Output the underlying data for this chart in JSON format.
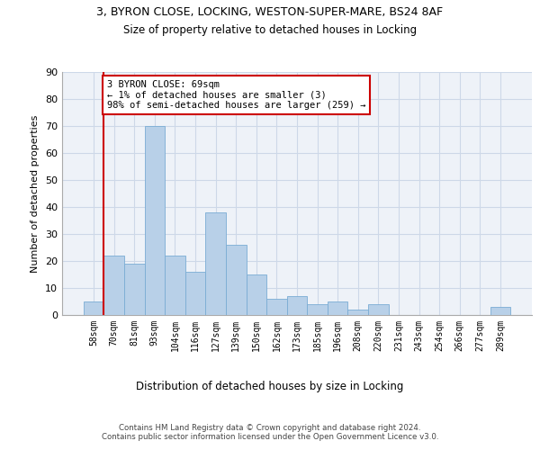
{
  "title1": "3, BYRON CLOSE, LOCKING, WESTON-SUPER-MARE, BS24 8AF",
  "title2": "Size of property relative to detached houses in Locking",
  "xlabel": "Distribution of detached houses by size in Locking",
  "ylabel": "Number of detached properties",
  "bin_labels": [
    "58sqm",
    "70sqm",
    "81sqm",
    "93sqm",
    "104sqm",
    "116sqm",
    "127sqm",
    "139sqm",
    "150sqm",
    "162sqm",
    "173sqm",
    "185sqm",
    "196sqm",
    "208sqm",
    "220sqm",
    "231sqm",
    "243sqm",
    "254sqm",
    "266sqm",
    "277sqm",
    "289sqm"
  ],
  "bar_heights": [
    5,
    22,
    19,
    70,
    22,
    16,
    38,
    26,
    15,
    6,
    7,
    4,
    5,
    2,
    4,
    0,
    0,
    0,
    0,
    0,
    3
  ],
  "bar_color": "#b8d0e8",
  "bar_edge_color": "#7aacd4",
  "grid_color": "#cdd8e8",
  "background_color": "#eef2f8",
  "vline_color": "#cc0000",
  "annotation_text": "3 BYRON CLOSE: 69sqm\n← 1% of detached houses are smaller (3)\n98% of semi-detached houses are larger (259) →",
  "annotation_box_color": "#ffffff",
  "annotation_box_edge": "#cc0000",
  "footer": "Contains HM Land Registry data © Crown copyright and database right 2024.\nContains public sector information licensed under the Open Government Licence v3.0.",
  "ylim": [
    0,
    90
  ],
  "yticks": [
    0,
    10,
    20,
    30,
    40,
    50,
    60,
    70,
    80,
    90
  ]
}
